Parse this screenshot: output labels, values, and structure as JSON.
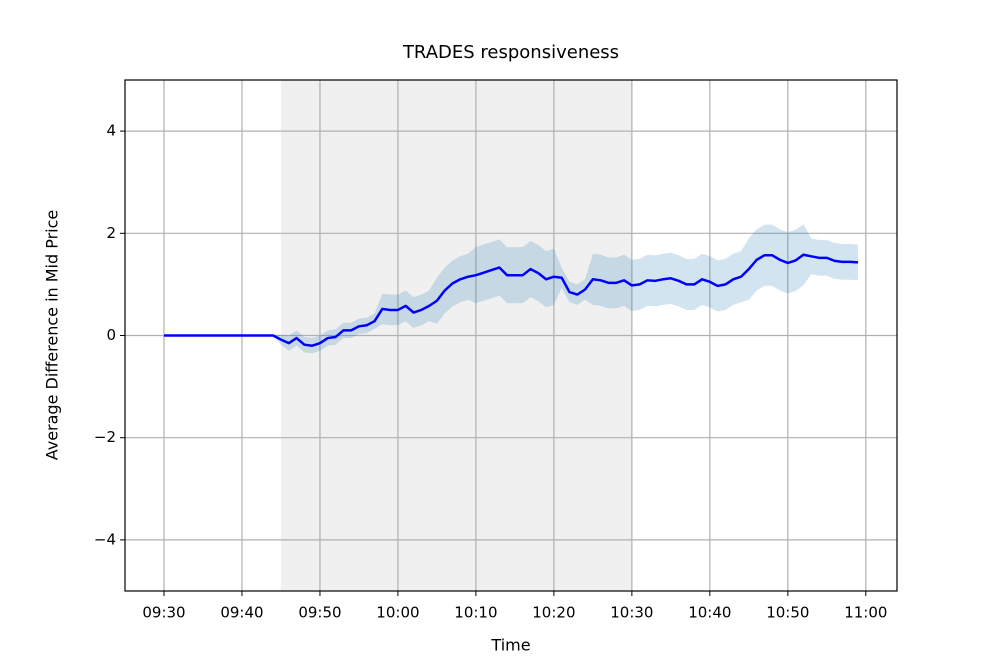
{
  "chart_data": {
    "type": "line",
    "title": "TRADES responsiveness",
    "x_label": "Time",
    "y_label": "Average Difference in Mid Price",
    "x": [
      "09:30",
      "09:31",
      "09:32",
      "09:33",
      "09:34",
      "09:35",
      "09:36",
      "09:37",
      "09:38",
      "09:39",
      "09:40",
      "09:41",
      "09:42",
      "09:43",
      "09:44",
      "09:45",
      "09:46",
      "09:47",
      "09:48",
      "09:49",
      "09:50",
      "09:51",
      "09:52",
      "09:53",
      "09:54",
      "09:55",
      "09:56",
      "09:57",
      "09:58",
      "09:59",
      "10:00",
      "10:01",
      "10:02",
      "10:03",
      "10:04",
      "10:05",
      "10:06",
      "10:07",
      "10:08",
      "10:09",
      "10:10",
      "10:11",
      "10:12",
      "10:13",
      "10:14",
      "10:15",
      "10:16",
      "10:17",
      "10:18",
      "10:19",
      "10:20",
      "10:21",
      "10:22",
      "10:23",
      "10:24",
      "10:25",
      "10:26",
      "10:27",
      "10:28",
      "10:29",
      "10:30",
      "10:31",
      "10:32",
      "10:33",
      "10:34",
      "10:35",
      "10:36",
      "10:37",
      "10:38",
      "10:39",
      "10:40",
      "10:41",
      "10:42",
      "10:43",
      "10:44",
      "10:45",
      "10:46",
      "10:47",
      "10:48",
      "10:49",
      "10:50",
      "10:51",
      "10:52",
      "10:53",
      "10:54",
      "10:55",
      "10:56",
      "10:57",
      "10:58",
      "10:59"
    ],
    "xlim": [
      "09:25",
      "11:04"
    ],
    "xticks": [
      "09:30",
      "09:40",
      "09:50",
      "10:00",
      "10:10",
      "10:20",
      "10:30",
      "10:40",
      "10:50",
      "11:00"
    ],
    "ylim": [
      -5,
      5
    ],
    "yticks": [
      {
        "value": -4,
        "label": "−4"
      },
      {
        "value": -2,
        "label": "−2"
      },
      0,
      2,
      4
    ],
    "grid": true,
    "shaded_span": [
      "09:45",
      "10:30"
    ],
    "shaded_color": "#f0f0f0",
    "series": [
      {
        "color": "#0000ff",
        "values": [
          0,
          0,
          0,
          0,
          0,
          0,
          0,
          0,
          0,
          0,
          0,
          0,
          0,
          0,
          0,
          -0.08,
          -0.15,
          -0.05,
          -0.18,
          -0.2,
          -0.15,
          -0.05,
          -0.03,
          0.1,
          0.1,
          0.18,
          0.2,
          0.28,
          0.52,
          0.5,
          0.5,
          0.58,
          0.45,
          0.5,
          0.58,
          0.68,
          0.88,
          1.02,
          1.1,
          1.15,
          1.18,
          1.23,
          1.28,
          1.33,
          1.18,
          1.18,
          1.18,
          1.3,
          1.22,
          1.1,
          1.15,
          1.13,
          0.85,
          0.8,
          0.9,
          1.1,
          1.08,
          1.03,
          1.03,
          1.08,
          0.98,
          1.0,
          1.08,
          1.07,
          1.1,
          1.12,
          1.07,
          1.0,
          1.0,
          1.1,
          1.05,
          0.97,
          1.0,
          1.1,
          1.15,
          1.3,
          1.48,
          1.57,
          1.57,
          1.48,
          1.42,
          1.47,
          1.58,
          1.55,
          1.52,
          1.52,
          1.46,
          1.44,
          1.44,
          1.43
        ]
      }
    ],
    "band": {
      "color": "#1f77b4",
      "alpha": 0.2,
      "lower": [
        null,
        null,
        null,
        null,
        null,
        null,
        null,
        null,
        null,
        null,
        null,
        null,
        null,
        null,
        0,
        -0.18,
        -0.3,
        -0.2,
        -0.33,
        -0.35,
        -0.3,
        -0.2,
        -0.18,
        -0.05,
        -0.05,
        0.03,
        0.05,
        0.13,
        0.22,
        0.2,
        0.2,
        0.28,
        0.15,
        0.2,
        0.28,
        0.23,
        0.43,
        0.57,
        0.65,
        0.7,
        0.63,
        0.68,
        0.73,
        0.78,
        0.63,
        0.63,
        0.63,
        0.75,
        0.67,
        0.55,
        0.6,
        0.93,
        0.65,
        0.6,
        0.7,
        0.6,
        0.58,
        0.53,
        0.53,
        0.58,
        0.48,
        0.5,
        0.58,
        0.57,
        0.6,
        0.62,
        0.57,
        0.5,
        0.5,
        0.6,
        0.55,
        0.47,
        0.5,
        0.6,
        0.65,
        0.7,
        0.88,
        0.97,
        0.97,
        0.88,
        0.82,
        0.87,
        0.98,
        1.2,
        1.17,
        1.17,
        1.11,
        1.09,
        1.09,
        1.08
      ],
      "upper": [
        null,
        null,
        null,
        null,
        null,
        null,
        null,
        null,
        null,
        null,
        null,
        null,
        null,
        null,
        0,
        0.02,
        0,
        0.1,
        -0.03,
        -0.05,
        0,
        0.1,
        0.12,
        0.25,
        0.25,
        0.33,
        0.35,
        0.43,
        0.82,
        0.8,
        0.8,
        0.88,
        0.75,
        0.8,
        0.88,
        1.13,
        1.33,
        1.47,
        1.55,
        1.6,
        1.73,
        1.78,
        1.83,
        1.88,
        1.73,
        1.73,
        1.73,
        1.85,
        1.77,
        1.65,
        1.7,
        1.33,
        1.05,
        1.0,
        1.1,
        1.6,
        1.58,
        1.53,
        1.53,
        1.58,
        1.48,
        1.5,
        1.58,
        1.57,
        1.6,
        1.62,
        1.57,
        1.5,
        1.5,
        1.6,
        1.55,
        1.47,
        1.5,
        1.6,
        1.65,
        1.9,
        2.08,
        2.17,
        2.17,
        2.08,
        2.02,
        2.07,
        2.18,
        1.9,
        1.87,
        1.87,
        1.81,
        1.79,
        1.79,
        1.78
      ]
    }
  }
}
